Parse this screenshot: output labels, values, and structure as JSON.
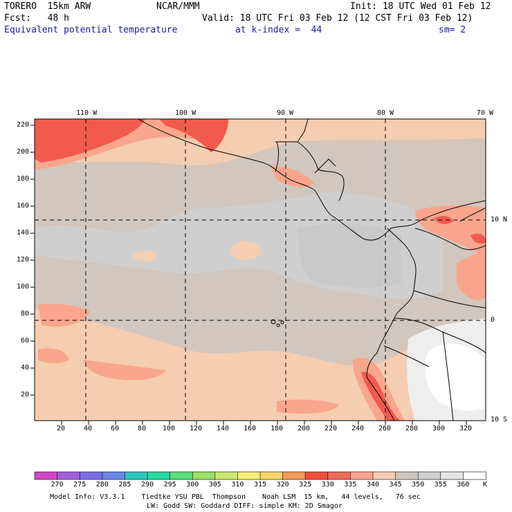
{
  "header": {
    "model": "TORERO  15km ARW",
    "center": "NCAR/MMM",
    "init": "Init: 18 UTC Wed 01 Feb 12",
    "fcst": "Fcst:   48 h",
    "valid": "Valid: 18 UTC Fri 03 Feb 12 (12 CST Fri 03 Feb 12)",
    "field": "Equivalent potential temperature",
    "level": "at k-index =  44",
    "smooth": "sm= 2"
  },
  "map": {
    "top_lon_labels": [
      "110 W",
      "100 W",
      "90 W",
      "80 W",
      "70 W"
    ],
    "right_lat_labels": [
      "10 N",
      "0",
      "10 S"
    ],
    "left_y_ticks": [
      "220",
      "200",
      "180",
      "160",
      "140",
      "120",
      "100",
      "80",
      "60",
      "40",
      "20"
    ],
    "bottom_x_ticks": [
      "20",
      "40",
      "60",
      "80",
      "100",
      "120",
      "140",
      "160",
      "180",
      "200",
      "220",
      "240",
      "260",
      "280",
      "300",
      "320"
    ],
    "colors": {
      "tan": "#f5cdb0",
      "grey_brown": "#d2c6bd",
      "light_grey": "#cfcfcf",
      "salmon": "#f9a68c",
      "red": "#f25a4e",
      "white_grey": "#eeeeee",
      "border": "#000000"
    }
  },
  "colorbar": {
    "labels": [
      "270",
      "275",
      "280",
      "285",
      "290",
      "295",
      "300",
      "305",
      "310",
      "315",
      "320",
      "325",
      "330",
      "335",
      "340",
      "345",
      "350",
      "355",
      "360"
    ],
    "unit": "K",
    "colors": [
      "#d048c8",
      "#a460d8",
      "#7c6ee8",
      "#6a86e8",
      "#2cc8c0",
      "#2ad8a0",
      "#5ce07a",
      "#9ce06a",
      "#cde870",
      "#f5ee7a",
      "#f8d66a",
      "#f69a5a",
      "#f0503e",
      "#f26a58",
      "#f9a68c",
      "#f5cdb0",
      "#d2c6bd",
      "#cfcfcf",
      "#e4e4e4",
      "#ffffff"
    ]
  },
  "footer": {
    "line1": "Model Info: V3.3.1    Tiedtke YSU PBL  Thompson    Noah LSM  15 km,   44 levels,   76 sec",
    "line2": "LW: Godd SW: Goddard DIFF: simple KM: 2D Smagor"
  }
}
